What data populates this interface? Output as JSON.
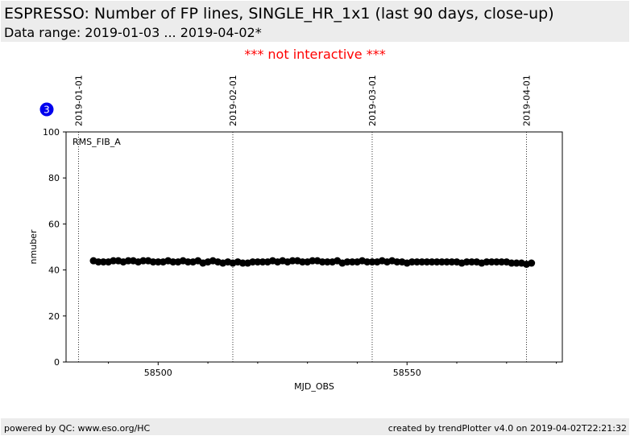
{
  "chart_data": {
    "type": "scatter",
    "title": "ESPRESSO: Number of FP lines, SINGLE_HR_1x1 (last 90 days, close-up)",
    "subtitle": "Data range: 2019-01-03 ... 2019-04-02*",
    "annotation": "RMS_FIB_A",
    "xlabel": "MJD_OBS",
    "ylabel": "nmuber",
    "xlim": [
      58481.5,
      58581.2
    ],
    "ylim": [
      0,
      100
    ],
    "xticks": [
      58500,
      58550
    ],
    "xminorticks": [
      58490,
      58510,
      58520,
      58530,
      58540,
      58560,
      58570,
      58580
    ],
    "yticks": [
      0,
      20,
      40,
      60,
      80,
      100
    ],
    "date_lines": [
      {
        "value": 58484,
        "label": "2019-01-01"
      },
      {
        "value": 58515,
        "label": "2019-02-01"
      },
      {
        "value": 58543,
        "label": "2019-03-01"
      },
      {
        "value": 58574,
        "label": "2019-04-01"
      }
    ],
    "color": "#000000",
    "x": [
      58487,
      58488,
      58489,
      58490,
      58491,
      58492,
      58493,
      58494,
      58495,
      58496,
      58497,
      58498,
      58499,
      58500,
      58501,
      58502,
      58503,
      58504,
      58505,
      58506,
      58507,
      58508,
      58509,
      58510,
      58511,
      58512,
      58513,
      58514,
      58515,
      58516,
      58517,
      58518,
      58519,
      58520,
      58521,
      58522,
      58523,
      58524,
      58525,
      58526,
      58527,
      58528,
      58529,
      58530,
      58531,
      58532,
      58533,
      58534,
      58535,
      58536,
      58537,
      58538,
      58539,
      58540,
      58541,
      58542,
      58543,
      58544,
      58545,
      58546,
      58547,
      58548,
      58549,
      58550,
      58551,
      58552,
      58553,
      58554,
      58555,
      58556,
      58557,
      58558,
      58559,
      58560,
      58561,
      58562,
      58563,
      58564,
      58565,
      58566,
      58567,
      58568,
      58569,
      58570,
      58571,
      58572,
      58573,
      58574,
      58575
    ],
    "values": [
      44,
      43.5,
      43.5,
      43.5,
      44,
      44,
      43.5,
      44,
      44,
      43.5,
      44,
      44,
      43.5,
      43.5,
      43.5,
      44,
      43.5,
      43.5,
      44,
      43.5,
      43.5,
      44,
      43,
      43.5,
      44,
      43.5,
      43,
      43.5,
      43,
      43.5,
      43,
      43,
      43.5,
      43.5,
      43.5,
      43.5,
      44,
      43.5,
      44,
      43.5,
      44,
      44,
      43.5,
      43.5,
      44,
      44,
      43.5,
      43.5,
      43.5,
      44,
      43,
      43.5,
      43.5,
      43.5,
      44,
      43.5,
      43.5,
      43.5,
      44,
      43.5,
      44,
      43.5,
      43.5,
      43,
      43.5,
      43.5,
      43.5,
      43.5,
      43.5,
      43.5,
      43.5,
      43.5,
      43.5,
      43.5,
      43,
      43.5,
      43.5,
      43.5,
      43,
      43.5,
      43.5,
      43.5,
      43.5,
      43.5,
      43,
      43,
      43,
      42.5,
      43
    ]
  },
  "note": "*** not interactive ***",
  "badge": "3",
  "footer_left": "powered by QC: www.eso.org/HC",
  "footer_right": "created by trendPlotter v4.0 on 2019-04-02T22:21:32"
}
